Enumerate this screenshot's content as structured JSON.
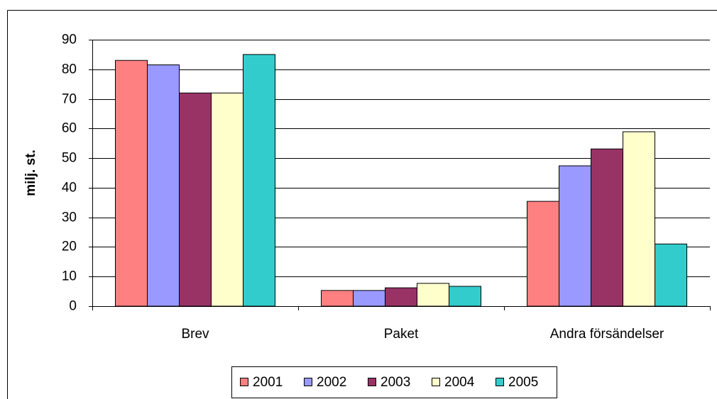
{
  "chart_data": {
    "type": "bar",
    "y_label": "milj. st.",
    "categories": [
      "Brev",
      "Paket",
      "Andra försändelser"
    ],
    "series": [
      {
        "name": "2001",
        "color": "#FF8080",
        "values": [
          83,
          5.3,
          35.4
        ]
      },
      {
        "name": "2002",
        "color": "#9999FF",
        "values": [
          81.5,
          5.3,
          47.4
        ]
      },
      {
        "name": "2003",
        "color": "#993366",
        "values": [
          72,
          6.2,
          53.1
        ]
      },
      {
        "name": "2004",
        "color": "#FFFFCC",
        "values": [
          72,
          7.7,
          58.9
        ]
      },
      {
        "name": "2005",
        "color": "#33CCCC",
        "values": [
          85,
          6.7,
          21
        ]
      }
    ],
    "ylim": [
      0,
      90
    ],
    "yticks": [
      0,
      10,
      20,
      30,
      40,
      50,
      60,
      70,
      80,
      90
    ],
    "grid": true,
    "legend": "bottom"
  }
}
